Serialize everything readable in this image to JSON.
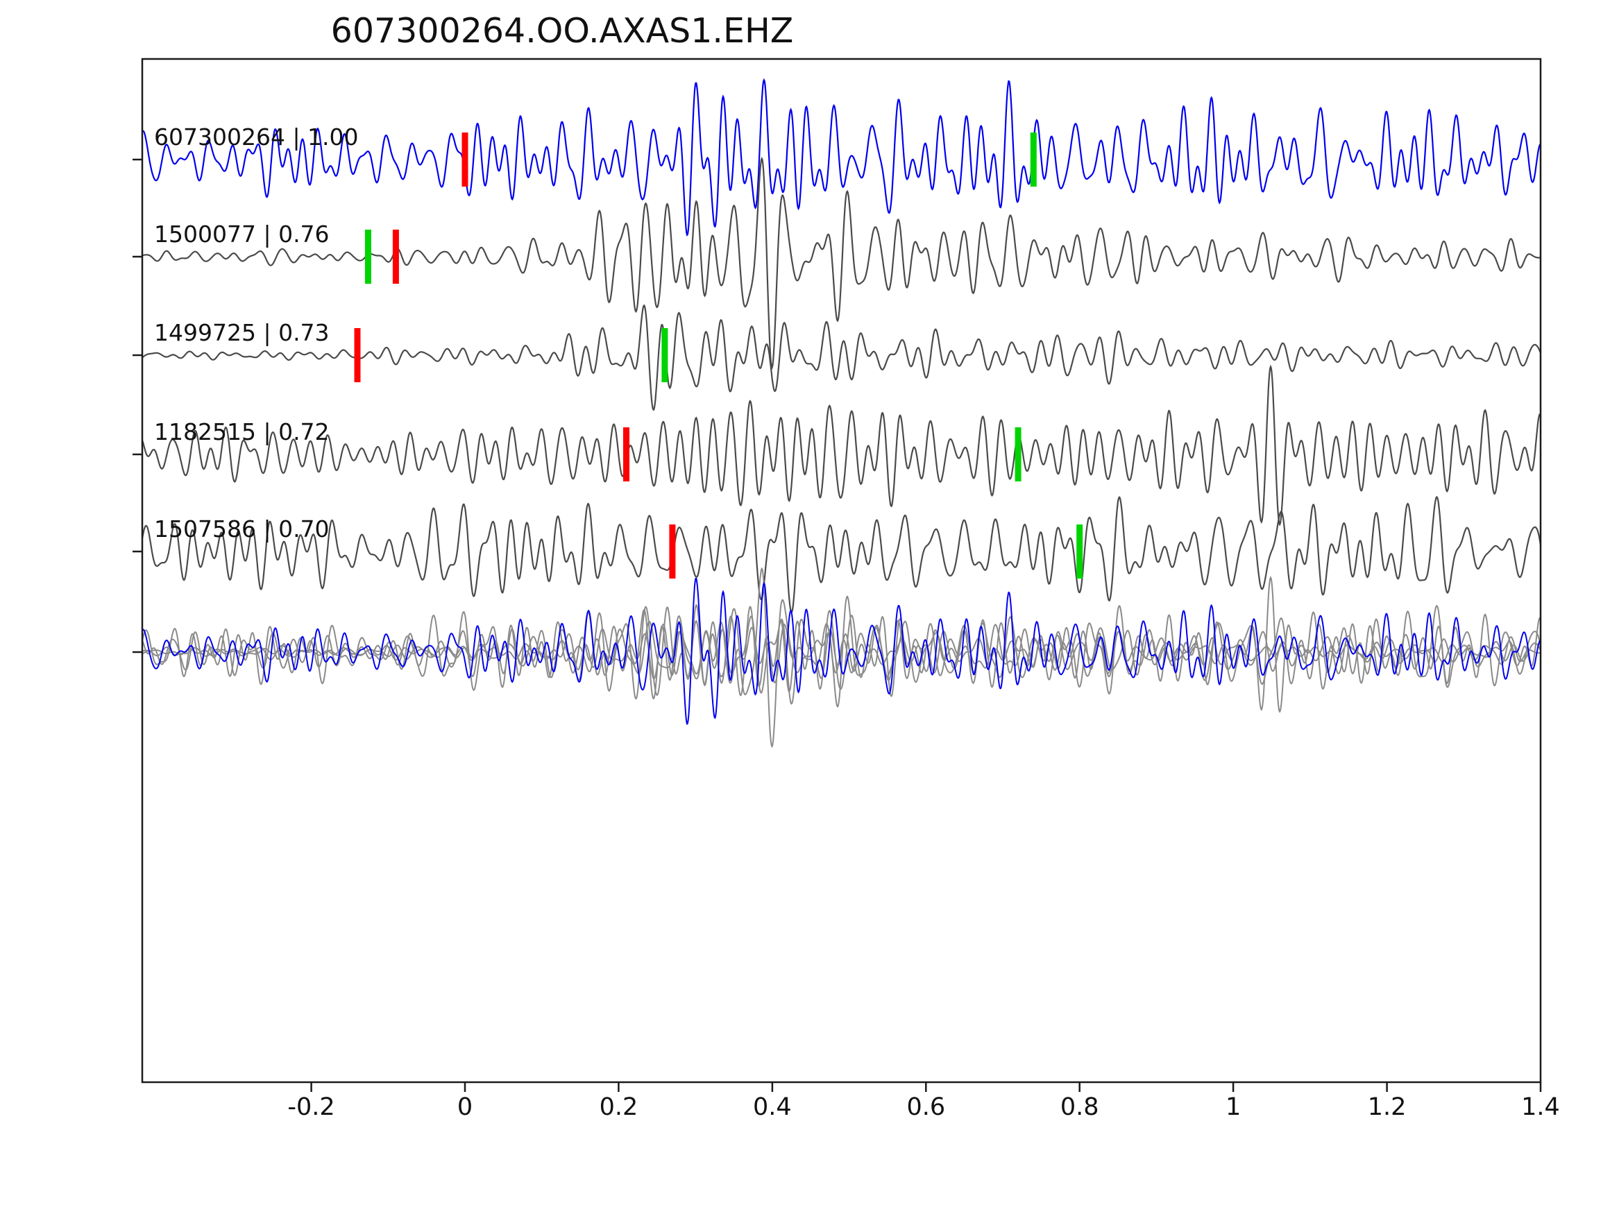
{
  "chart_data": {
    "type": "line",
    "title": "607300264.OO.AXAS1.EHZ",
    "xlabel": "",
    "ylabel": "",
    "xlim": [
      -0.42,
      1.4
    ],
    "x_ticks": [
      -0.2,
      0,
      0.2,
      0.4,
      0.6,
      0.8,
      1,
      1.2,
      1.4
    ],
    "x_tick_labels": [
      "-0.2",
      "0",
      "0.2",
      "0.4",
      "0.6",
      "0.8",
      "1",
      "1.2",
      "1.4"
    ],
    "grid": false,
    "legend": "none",
    "colors": {
      "template_blue": "#0000f0",
      "match_gray": "#4a4a4a",
      "overlay_gray": "#8a8a8a",
      "pick_red": "#ff0000",
      "pick_green": "#00d400",
      "axis": "#1a1a1a"
    },
    "traces": [
      {
        "label": "607300264 | 1.00",
        "event_id": "607300264",
        "similarity": 1.0,
        "color_key": "template_blue",
        "seed": 101,
        "freq": 40,
        "envelope": [
          [
            -0.42,
            32
          ],
          [
            -0.25,
            30
          ],
          [
            -0.1,
            34
          ],
          [
            0.05,
            40
          ],
          [
            0.18,
            50
          ],
          [
            0.28,
            72
          ],
          [
            0.35,
            80
          ],
          [
            0.45,
            62
          ],
          [
            0.55,
            58
          ],
          [
            0.7,
            55
          ],
          [
            0.8,
            52
          ],
          [
            0.95,
            48
          ],
          [
            1.1,
            52
          ],
          [
            1.2,
            45
          ],
          [
            1.3,
            42
          ],
          [
            1.4,
            38
          ]
        ],
        "picks": [
          {
            "x": 0.0,
            "color_key": "pick_red"
          },
          {
            "x": 0.74,
            "color_key": "pick_green"
          }
        ]
      },
      {
        "label": "1500077 | 0.76",
        "event_id": "1500077",
        "similarity": 0.76,
        "color_key": "match_gray",
        "seed": 202,
        "freq": 40,
        "envelope": [
          [
            -0.42,
            6
          ],
          [
            -0.2,
            7
          ],
          [
            -0.05,
            9
          ],
          [
            0.05,
            12
          ],
          [
            0.12,
            20
          ],
          [
            0.2,
            55
          ],
          [
            0.27,
            85
          ],
          [
            0.33,
            92
          ],
          [
            0.4,
            75
          ],
          [
            0.5,
            60
          ],
          [
            0.6,
            45
          ],
          [
            0.7,
            38
          ],
          [
            0.85,
            30
          ],
          [
            1.0,
            24
          ],
          [
            1.15,
            20
          ],
          [
            1.4,
            16
          ]
        ],
        "picks": [
          {
            "x": -0.126,
            "color_key": "pick_green"
          },
          {
            "x": -0.09,
            "color_key": "pick_red"
          }
        ]
      },
      {
        "label": "1499725 | 0.73",
        "event_id": "1499725",
        "similarity": 0.73,
        "color_key": "match_gray",
        "seed": 303,
        "freq": 40,
        "envelope": [
          [
            -0.42,
            6
          ],
          [
            -0.2,
            8
          ],
          [
            -0.05,
            10
          ],
          [
            0.08,
            18
          ],
          [
            0.15,
            35
          ],
          [
            0.22,
            60
          ],
          [
            0.3,
            78
          ],
          [
            0.38,
            60
          ],
          [
            0.48,
            42
          ],
          [
            0.6,
            34
          ],
          [
            0.75,
            28
          ],
          [
            0.9,
            22
          ],
          [
            1.1,
            18
          ],
          [
            1.4,
            13
          ]
        ],
        "picks": [
          {
            "x": -0.14,
            "color_key": "pick_red"
          },
          {
            "x": 0.26,
            "color_key": "pick_green"
          }
        ]
      },
      {
        "label": "1182515 | 0.72",
        "event_id": "1182515",
        "similarity": 0.72,
        "color_key": "match_gray",
        "seed": 404,
        "freq": 38,
        "envelope": [
          [
            -0.42,
            26
          ],
          [
            -0.25,
            30
          ],
          [
            -0.1,
            26
          ],
          [
            0.0,
            30
          ],
          [
            0.1,
            28
          ],
          [
            0.2,
            35
          ],
          [
            0.27,
            65
          ],
          [
            0.33,
            72
          ],
          [
            0.42,
            55
          ],
          [
            0.55,
            45
          ],
          [
            0.7,
            42
          ],
          [
            0.85,
            38
          ],
          [
            0.95,
            35
          ],
          [
            1.05,
            70
          ],
          [
            1.12,
            60
          ],
          [
            1.25,
            42
          ],
          [
            1.4,
            45
          ]
        ],
        "picks": [
          {
            "x": 0.21,
            "color_key": "pick_red"
          },
          {
            "x": 0.72,
            "color_key": "pick_green"
          }
        ]
      },
      {
        "label": "1507586 | 0.70",
        "event_id": "1507586",
        "similarity": 0.7,
        "color_key": "match_gray",
        "seed": 505,
        "freq": 36,
        "envelope": [
          [
            -0.42,
            42
          ],
          [
            -0.3,
            48
          ],
          [
            -0.15,
            45
          ],
          [
            0.0,
            52
          ],
          [
            0.1,
            55
          ],
          [
            0.2,
            50
          ],
          [
            0.3,
            62
          ],
          [
            0.4,
            48
          ],
          [
            0.5,
            42
          ],
          [
            0.6,
            50
          ],
          [
            0.7,
            45
          ],
          [
            0.8,
            40
          ],
          [
            0.9,
            42
          ],
          [
            1.0,
            45
          ],
          [
            1.05,
            60
          ],
          [
            1.1,
            52
          ],
          [
            1.2,
            42
          ],
          [
            1.3,
            45
          ],
          [
            1.4,
            35
          ]
        ],
        "picks": [
          {
            "x": 0.27,
            "color_key": "pick_red"
          },
          {
            "x": 0.8,
            "color_key": "pick_green"
          }
        ]
      }
    ],
    "overlay": {
      "description": "all traces overlaid, template in blue",
      "members": [
        {
          "color_key": "overlay_gray",
          "trace_ref": 1,
          "seed": 202,
          "freq": 40,
          "scale": 0.85
        },
        {
          "color_key": "overlay_gray",
          "trace_ref": 2,
          "seed": 303,
          "freq": 40,
          "scale": 0.85
        },
        {
          "color_key": "overlay_gray",
          "trace_ref": 3,
          "seed": 404,
          "freq": 38,
          "scale": 0.85
        },
        {
          "color_key": "overlay_gray",
          "trace_ref": 4,
          "seed": 505,
          "freq": 36,
          "scale": 0.85
        },
        {
          "color_key": "template_blue",
          "seed": 101,
          "freq": 40,
          "scale": 0.9,
          "envelope": [
            [
              -0.42,
              28
            ],
            [
              -0.2,
              26
            ],
            [
              0.0,
              30
            ],
            [
              0.15,
              40
            ],
            [
              0.25,
              70
            ],
            [
              0.33,
              85
            ],
            [
              0.45,
              55
            ],
            [
              0.6,
              48
            ],
            [
              0.8,
              45
            ],
            [
              1.0,
              40
            ],
            [
              1.2,
              40
            ],
            [
              1.4,
              32
            ]
          ]
        }
      ]
    }
  }
}
